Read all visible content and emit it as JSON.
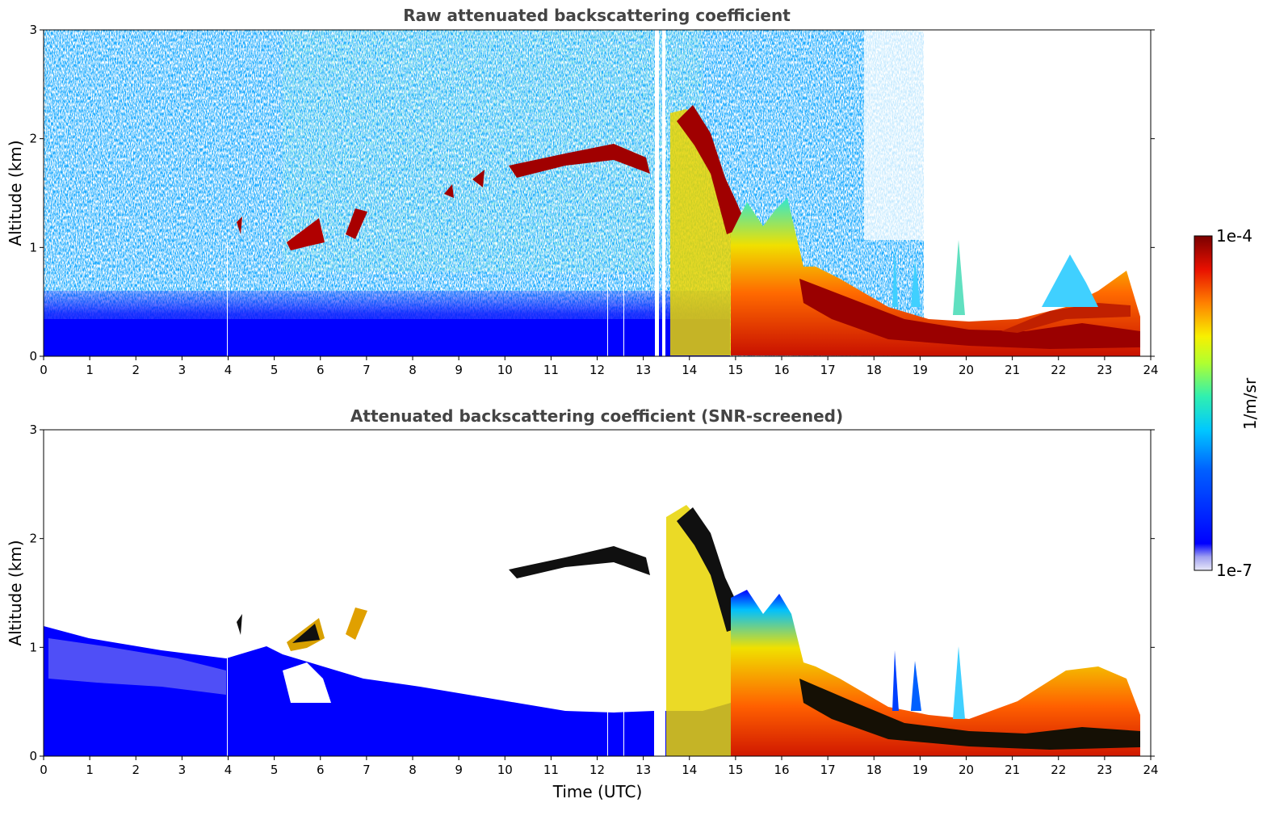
{
  "chart_data": [
    {
      "type": "heatmap",
      "title": "Raw attenuated backscattering coefficient",
      "xlabel": "",
      "ylabel": "Altitude (km)",
      "xlim": [
        0,
        24
      ],
      "ylim": [
        0,
        3
      ],
      "xticks": [
        "0",
        "1",
        "2",
        "3",
        "4",
        "5",
        "6",
        "7",
        "8",
        "9",
        "10",
        "11",
        "12",
        "13",
        "14",
        "15",
        "16",
        "17",
        "18",
        "19",
        "20",
        "21",
        "22",
        "23",
        "24"
      ],
      "yticks": [
        "0",
        "1",
        "2",
        "3"
      ],
      "colormap": "jet",
      "features": [
        {
          "kind": "cloud_layer",
          "x": [
            5.3,
            6.0
          ],
          "y": [
            1.05,
            1.25
          ]
        },
        {
          "kind": "cloud_layer",
          "x": [
            10.1,
            13.2
          ],
          "y": [
            1.55,
            1.95
          ]
        },
        {
          "kind": "cloud_layer",
          "x": [
            13.6,
            14.9
          ],
          "y": [
            1.2,
            2.2
          ]
        },
        {
          "kind": "boundary_layer",
          "x": [
            15.0,
            23.8
          ],
          "y": [
            0.1,
            0.7
          ]
        }
      ]
    },
    {
      "type": "heatmap",
      "title": "Attenuated backscattering coefficient (SNR-screened)",
      "xlabel": "Time (UTC)",
      "ylabel": "Altitude (km)",
      "xlim": [
        0,
        24
      ],
      "ylim": [
        0,
        3
      ],
      "xticks": [
        "0",
        "1",
        "2",
        "3",
        "4",
        "5",
        "6",
        "7",
        "8",
        "9",
        "10",
        "11",
        "12",
        "13",
        "14",
        "15",
        "16",
        "17",
        "18",
        "19",
        "20",
        "21",
        "22",
        "23",
        "24"
      ],
      "yticks": [
        "0",
        "1",
        "2",
        "3"
      ],
      "colormap": "jet"
    }
  ],
  "colorbar": {
    "label": "1/m/sr",
    "max_label": "1e-4",
    "min_label": "1e-7",
    "colors": [
      "#e4e4f8",
      "#9a9aee",
      "#0000ff",
      "#0050ff",
      "#00a0ff",
      "#00e0e8",
      "#40f0a0",
      "#a0ff40",
      "#f0f000",
      "#ffb000",
      "#ff6000",
      "#e81000",
      "#a00000",
      "#800000"
    ]
  }
}
